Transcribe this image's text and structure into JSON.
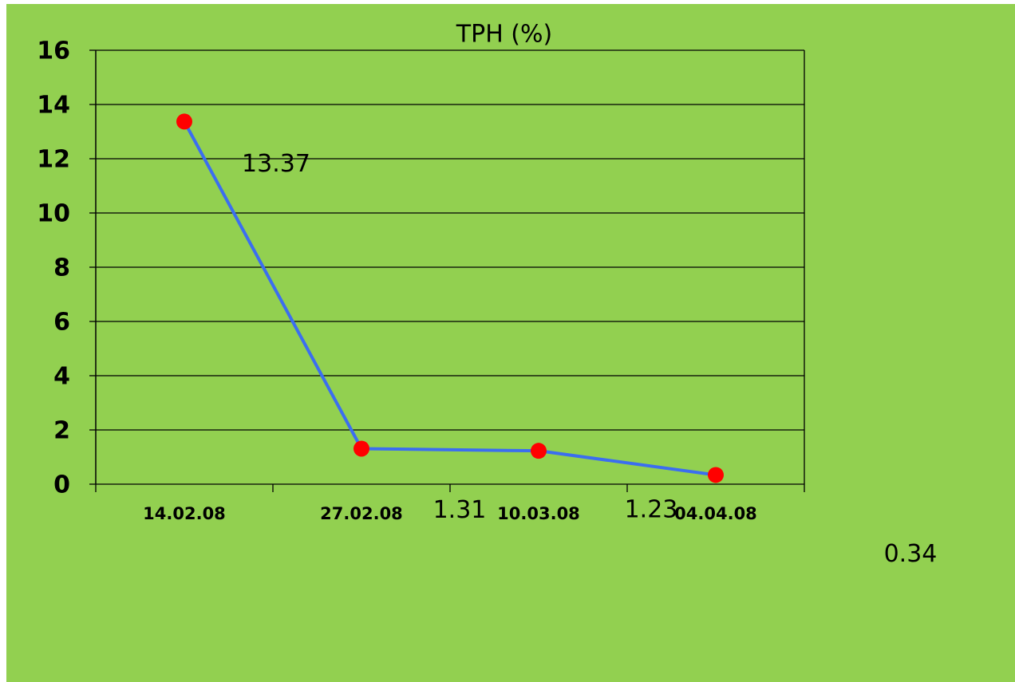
{
  "chart_data": {
    "type": "line",
    "title": "TPH (%)",
    "categories": [
      "14.02.08",
      "27.02.08",
      "10.03.08",
      "04.04.08"
    ],
    "series": [
      {
        "name": "TPH (%)",
        "color": "#3b6ef0",
        "marker_color": "#ff0000",
        "values": [
          13.37,
          1.31,
          1.23,
          0.34
        ]
      }
    ],
    "ylim": [
      0,
      16
    ],
    "yticks": [
      0,
      2,
      4,
      6,
      8,
      10,
      12,
      14,
      16
    ],
    "grid": true,
    "background": "#92d050"
  }
}
